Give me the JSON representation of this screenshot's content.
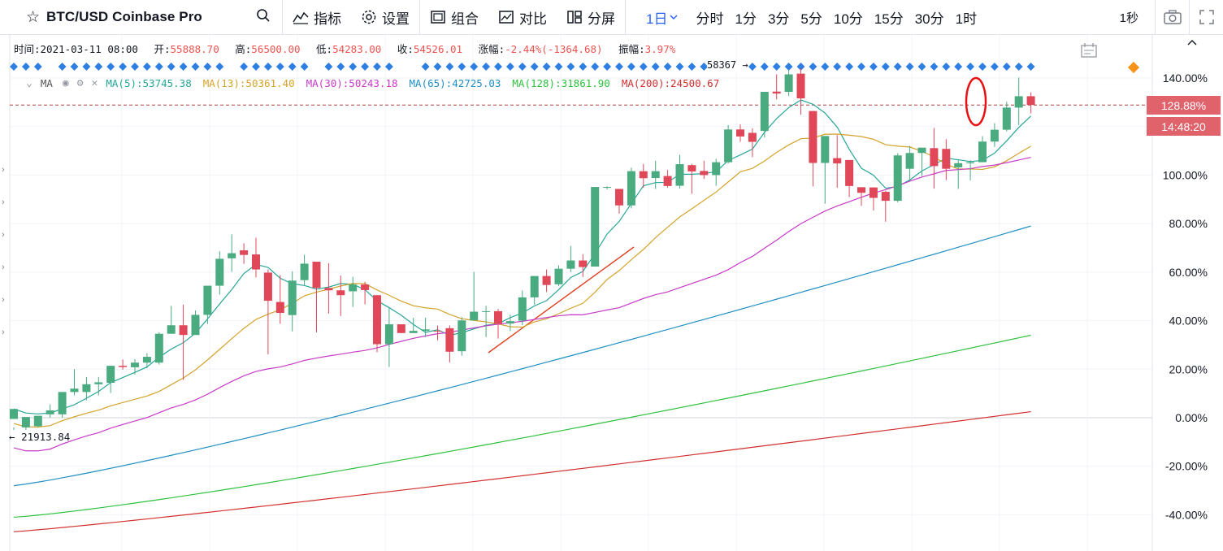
{
  "toolbar": {
    "symbol": "BTC/USD Coinbase Pro",
    "buttons": {
      "indicators": "指标",
      "settings": "设置",
      "combo": "组合",
      "compare": "对比",
      "split": "分屏"
    },
    "intervals": [
      "1日",
      "分时",
      "1分",
      "3分",
      "5分",
      "10分",
      "15分",
      "30分",
      "1时"
    ],
    "active_interval": "1日",
    "seconds": "1秒",
    "icons": [
      "star-icon",
      "search-icon",
      "indicators-icon",
      "gear-icon",
      "combo-icon",
      "compare-icon",
      "layout-icon",
      "camera-icon",
      "fullscreen-icon"
    ]
  },
  "ohlc": {
    "time_label": "时间:",
    "time": "2021-03-11 08:00",
    "open_label": "开:",
    "open": "55888.70",
    "high_label": "高:",
    "high": "56500.00",
    "low_label": "低:",
    "low": "54283.00",
    "close_label": "收:",
    "close": "54526.01",
    "change_label": "涨幅:",
    "change": "-2.44%(-1364.68)",
    "amplitude_label": "振幅:",
    "amplitude": "3.97%"
  },
  "ma_legend": {
    "title": "MA",
    "items": [
      {
        "label": "MA(5):53745.38",
        "color": "#26a69a"
      },
      {
        "label": "MA(13):50361.40",
        "color": "#d4a32a"
      },
      {
        "label": "MA(30):50243.18",
        "color": "#c83ac8"
      },
      {
        "label": "MA(65):42725.03",
        "color": "#1f8fc4"
      },
      {
        "label": "MA(128):31861.90",
        "color": "#2ec13e"
      },
      {
        "label": "MA(200):24500.67",
        "color": "#d32f2f"
      }
    ]
  },
  "price_badge": "128.88%",
  "time_badge": "14:48:20",
  "low_marker": "21913.84",
  "high_marker": "58367",
  "chart_data": {
    "type": "candlestick",
    "y_axis": "percent change",
    "ylim": [
      -47,
      147
    ],
    "y_ticks": [
      "140.00%",
      "120.00%",
      "100.00%",
      "80.00%",
      "60.00%",
      "40.00%",
      "20.00%",
      "0.00%",
      "-20.00%",
      "-40.00%"
    ],
    "y_tick_values": [
      140,
      120,
      100,
      80,
      60,
      40,
      20,
      0,
      -20,
      -40
    ],
    "current_value": 128.88,
    "candles": [
      [
        -0.5,
        3.6,
        -4,
        -5.0
      ],
      [
        -4.0,
        0.3,
        -1.6,
        -5.0
      ],
      [
        -3.5,
        0.8,
        -0.2,
        -4.0
      ],
      [
        1.4,
        3.0,
        5.5,
        0.0
      ],
      [
        1.4,
        10.6,
        10.6,
        0.0
      ],
      [
        10.6,
        12.0,
        20.0,
        9.2
      ],
      [
        10.6,
        13.8,
        16.8,
        7.2
      ],
      [
        13.8,
        14.6,
        16.8,
        9.2
      ],
      [
        14.4,
        21.4,
        21.4,
        10.2
      ],
      [
        21.4,
        20.9,
        24.0,
        19.8
      ],
      [
        20.8,
        22.7,
        24.1,
        17.8
      ],
      [
        22.7,
        25.1,
        26.6,
        20.4
      ],
      [
        22.7,
        34.6,
        35.2,
        21.9
      ],
      [
        34.6,
        38.1,
        46.1,
        34.6
      ],
      [
        38.1,
        34.1,
        46.6,
        15.6
      ],
      [
        34.1,
        42.4,
        44.2,
        35.4
      ],
      [
        42.4,
        54.4,
        54.4,
        38.6
      ],
      [
        54.4,
        65.5,
        68.6,
        50.7
      ],
      [
        65.7,
        67.8,
        75.6,
        60.1
      ],
      [
        69.0,
        67.1,
        71.9,
        63.4
      ],
      [
        67.3,
        61.1,
        74.2,
        57.8
      ],
      [
        59.8,
        48.2,
        61.1,
        26.1
      ],
      [
        47.7,
        43.2,
        58.8,
        38.7
      ],
      [
        42.3,
        56.5,
        60.3,
        35.6
      ],
      [
        56.7,
        63.5,
        67.2,
        54.4
      ],
      [
        64.3,
        53.5,
        64.3,
        35.2
      ],
      [
        53.5,
        52.5,
        63.7,
        42.9
      ],
      [
        52.5,
        50.5,
        58.6,
        41.9
      ],
      [
        52.1,
        54.9,
        58.1,
        45.6
      ],
      [
        54.9,
        52.6,
        56.0,
        46.7
      ],
      [
        50.5,
        30.3,
        50.5,
        27.0
      ],
      [
        30.3,
        38.5,
        45.1,
        20.9
      ],
      [
        38.5,
        34.9,
        38.5,
        34.9
      ],
      [
        34.9,
        35.8,
        41.2,
        34.9
      ],
      [
        35.8,
        36.4,
        41.2,
        33.2
      ],
      [
        35.8,
        35.7,
        38.0,
        31.9
      ],
      [
        36.9,
        27.2,
        38.0,
        22.7
      ],
      [
        27.4,
        40.1,
        41.4,
        25.5
      ],
      [
        40.1,
        43.7,
        60.1,
        40.1
      ],
      [
        43.7,
        43.9,
        46.1,
        33.2
      ],
      [
        43.9,
        38.8,
        44.9,
        32.6
      ],
      [
        38.8,
        39.8,
        42.5,
        35.7
      ],
      [
        40.0,
        49.6,
        52.5,
        38.2
      ],
      [
        49.6,
        58.4,
        58.4,
        46.6
      ],
      [
        58.4,
        54.7,
        61.1,
        51.8
      ],
      [
        55.0,
        61.4,
        62.8,
        54.3
      ],
      [
        61.4,
        64.8,
        70.8,
        60.0
      ],
      [
        64.8,
        62.1,
        67.4,
        58.0
      ],
      [
        62.3,
        95.1,
        95.1,
        62.3
      ],
      [
        95.1,
        95.1,
        95.4,
        94.1
      ],
      [
        94.3,
        87.5,
        94.3,
        84.1
      ],
      [
        87.5,
        101.6,
        103.1,
        86.3
      ],
      [
        101.6,
        98.7,
        104.6,
        94.8
      ],
      [
        98.8,
        101.6,
        105.9,
        94.3
      ],
      [
        99.6,
        95.5,
        102.1,
        94.8
      ],
      [
        95.6,
        104.5,
        108.4,
        94.4
      ],
      [
        104.1,
        101.5,
        104.6,
        92.3
      ],
      [
        101.7,
        100.0,
        105.9,
        98.4
      ],
      [
        100.0,
        105.3,
        106.7,
        95.6
      ],
      [
        105.3,
        118.8,
        120.6,
        104.8
      ],
      [
        118.8,
        115.9,
        120.9,
        113.7
      ],
      [
        117.4,
        113.7,
        119.3,
        107.4
      ],
      [
        118.2,
        134.3,
        134.3,
        115.5
      ],
      [
        134.4,
        133.6,
        141.5,
        131.2
      ],
      [
        134.3,
        141.5,
        143.5,
        132.6
      ],
      [
        141.8,
        131.6,
        144.0,
        124.9
      ],
      [
        126.4,
        105.0,
        126.4,
        95.3
      ],
      [
        105.0,
        116.1,
        116.1,
        88.2
      ],
      [
        107.0,
        104.8,
        116.5,
        94.8
      ],
      [
        106.2,
        95.5,
        106.2,
        90.9
      ],
      [
        95.0,
        92.7,
        95.0,
        87.3
      ],
      [
        94.9,
        90.6,
        95.0,
        85.4
      ],
      [
        93.1,
        89.4,
        93.5,
        80.8
      ],
      [
        89.4,
        108.1,
        109.0,
        88.8
      ],
      [
        102.6,
        109.1,
        112.0,
        97.6
      ],
      [
        109.1,
        111.3,
        111.3,
        99.6
      ],
      [
        111.1,
        103.7,
        119.4,
        94.4
      ],
      [
        110.8,
        102.6,
        114.8,
        97.9
      ],
      [
        103.2,
        104.9,
        106.2,
        94.3
      ],
      [
        104.9,
        105.3,
        106.2,
        97.8
      ],
      [
        105.3,
        113.8,
        116.0,
        105.3
      ],
      [
        113.8,
        118.7,
        121.4,
        111.6
      ],
      [
        118.7,
        127.8,
        130.2,
        118.0
      ],
      [
        127.8,
        132.5,
        140.2,
        120.6
      ],
      [
        132.5,
        128.9,
        134.1,
        125.4
      ]
    ]
  }
}
